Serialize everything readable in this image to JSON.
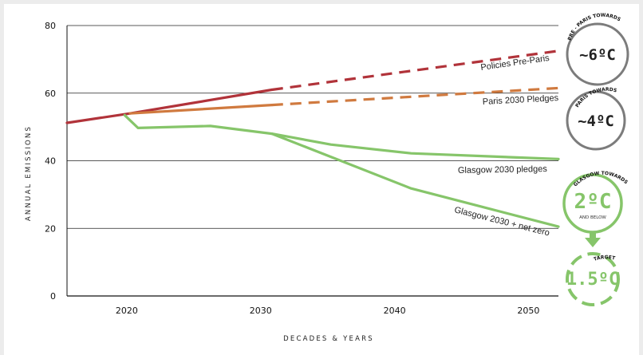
{
  "chart_data": {
    "type": "line",
    "ylabel": "ANNUAL EMISSIONS",
    "xlabel": "DECADES & YEARS",
    "ylim": [
      0,
      80
    ],
    "xlim": [
      2015.3,
      2052
    ],
    "yticks": [
      0,
      20,
      40,
      60,
      80
    ],
    "xticks": [
      2020,
      2030,
      2040,
      2050
    ],
    "grid": "horizontal",
    "series": [
      {
        "name": "Policies Pre-Paris",
        "color": "#b1333a",
        "solid": [
          [
            2015.3,
            51.2
          ],
          [
            2020,
            54
          ],
          [
            2030.6,
            61
          ]
        ],
        "projected": [
          [
            2030.6,
            61
          ],
          [
            2052,
            72.5
          ]
        ]
      },
      {
        "name": "Paris 2030 Pledges",
        "color": "#d07a3f",
        "solid": [
          [
            2020,
            54
          ],
          [
            2030.6,
            56.5
          ]
        ],
        "projected": [
          [
            2030.6,
            56.5
          ],
          [
            2052,
            61.5
          ]
        ]
      },
      {
        "name": "Glasgow 2030 pledges",
        "color": "#86c56a",
        "solid": [
          [
            2019.6,
            53.5
          ],
          [
            2020.6,
            49.7
          ],
          [
            2026,
            50.3
          ],
          [
            2030.6,
            48
          ],
          [
            2035,
            44.8
          ],
          [
            2041,
            42.2
          ],
          [
            2052,
            40.5
          ]
        ]
      },
      {
        "name": "Glasgow 2030 + net zero",
        "color": "#86c56a",
        "solid": [
          [
            2030.6,
            48
          ],
          [
            2041,
            31.8
          ],
          [
            2052,
            20.5
          ]
        ]
      }
    ]
  },
  "badges": [
    {
      "value": "~6ºC",
      "arc_label": "PRE - PARIS TOWARDS",
      "color": "#222222"
    },
    {
      "value": "~4ºC",
      "arc_label": "PARIS TOWARDS",
      "color": "#222222"
    },
    {
      "value": "2ºC",
      "arc_label": "GLASGOW TOWARDS",
      "sub": "AND BELOW",
      "color": "#86c56a"
    },
    {
      "value": "1.5ºC",
      "arc_label": "TARGET",
      "color": "#86c56a"
    }
  ],
  "colors": {
    "badge_ring": "#7c7c7c",
    "green": "#86c56a"
  }
}
